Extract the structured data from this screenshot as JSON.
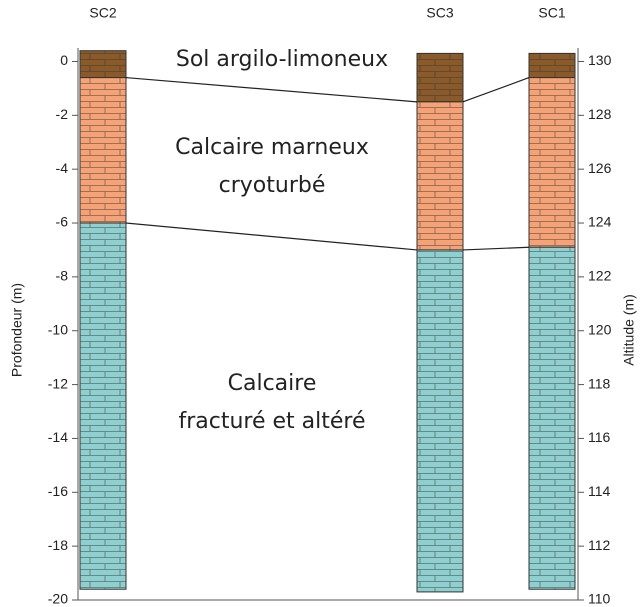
{
  "chart_data": {
    "type": "borehole",
    "ylabel": "Profondeur (m)",
    "y2label": "Altitude (m)",
    "ylim": [
      -20,
      0.5
    ],
    "yticks": [
      0,
      -2,
      -4,
      -6,
      -8,
      -10,
      -12,
      -14,
      -16,
      -18,
      -20
    ],
    "y2lim": [
      110,
      130.5
    ],
    "y2ticks": [
      130,
      128,
      126,
      124,
      122,
      120,
      118,
      116,
      114,
      112,
      110
    ],
    "columns": [
      {
        "name": "SC2",
        "layers": [
          {
            "top": 0.4,
            "bottom": -0.6,
            "color": "#8b5a2b"
          },
          {
            "top": -0.6,
            "bottom": -6.0,
            "color": "#f5a277"
          },
          {
            "top": -6.0,
            "bottom": -19.6,
            "color": "#8fcfcf"
          }
        ]
      },
      {
        "name": "SC3",
        "layers": [
          {
            "top": 0.3,
            "bottom": -1.5,
            "color": "#8b5a2b"
          },
          {
            "top": -1.5,
            "bottom": -7.0,
            "color": "#f5a277"
          },
          {
            "top": -7.0,
            "bottom": -19.7,
            "color": "#8fcfcf"
          }
        ]
      },
      {
        "name": "SC1",
        "layers": [
          {
            "top": 0.3,
            "bottom": -0.6,
            "color": "#8b5a2b"
          },
          {
            "top": -0.6,
            "bottom": -6.9,
            "color": "#f5a277"
          },
          {
            "top": -6.9,
            "bottom": -19.6,
            "color": "#8fcfcf"
          }
        ]
      }
    ],
    "labels": [
      [
        "Sol argilo-limoneux"
      ],
      [
        "Calcaire marneux",
        "cryoturbé"
      ],
      [
        "Calcaire",
        "fracturé et altéré"
      ]
    ]
  }
}
